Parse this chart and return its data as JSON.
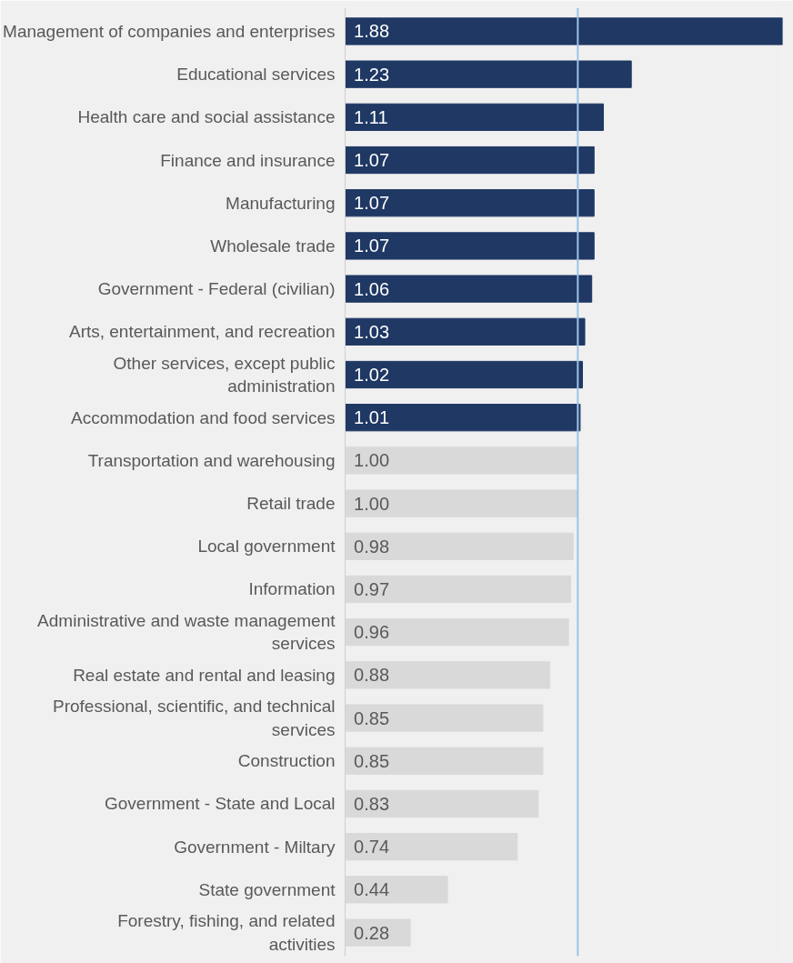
{
  "chart_data": {
    "type": "bar",
    "orientation": "horizontal",
    "grid": false,
    "value_labels": [
      "1.88",
      "1.23",
      "1.11",
      "1.07",
      "1.07",
      "1.07",
      "1.06",
      "1.03",
      "1.02",
      "1.01",
      "1.00",
      "1.00",
      "0.98",
      "0.97",
      "0.96",
      "0.88",
      "0.85",
      "0.85",
      "0.83",
      "0.74",
      "0.44",
      "0.28"
    ],
    "categories": [
      "Management of companies and enterprises",
      "Educational services",
      "Health care and social assistance",
      "Finance and insurance",
      "Manufacturing",
      "Wholesale trade",
      "Government - Federal (civilian)",
      "Arts, entertainment, and recreation",
      "Other services, except public administration",
      "Accommodation and food services",
      "Transportation and warehousing",
      "Retail trade",
      "Local government",
      "Information",
      "Administrative and waste management services",
      "Real estate and rental and leasing",
      "Professional, scientific, and technical services",
      "Construction",
      "Government - State and Local",
      "Government - Miltary",
      "State government",
      "Forestry, fishing, and related activities"
    ],
    "values": [
      1.88,
      1.23,
      1.11,
      1.07,
      1.07,
      1.07,
      1.06,
      1.03,
      1.02,
      1.01,
      1.0,
      1.0,
      0.98,
      0.97,
      0.96,
      0.88,
      0.85,
      0.85,
      0.83,
      0.74,
      0.44,
      0.28
    ],
    "colors": [
      "#1f3864",
      "#1f3864",
      "#1f3864",
      "#1f3864",
      "#1f3864",
      "#1f3864",
      "#1f3864",
      "#1f3864",
      "#1f3864",
      "#1f3864",
      "#d9d9d9",
      "#d9d9d9",
      "#d9d9d9",
      "#d9d9d9",
      "#d9d9d9",
      "#d9d9d9",
      "#d9d9d9",
      "#d9d9d9",
      "#d9d9d9",
      "#d9d9d9",
      "#d9d9d9",
      "#d9d9d9"
    ],
    "ref_lines": [
      {
        "axis": "x",
        "value": 1.0,
        "color": "#9dc3e6"
      }
    ]
  }
}
